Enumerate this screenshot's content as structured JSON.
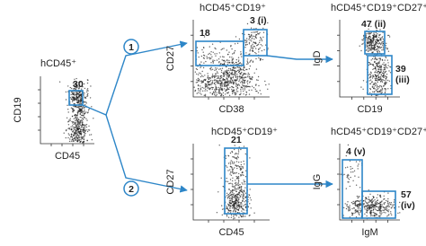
{
  "panels": [
    {
      "title": "hCD45⁺",
      "x_label": "CD45",
      "y_label": "CD19",
      "gates": [
        {
          "lines": [
            "30"
          ]
        }
      ]
    },
    {
      "title": "hCD45⁺CD19⁺",
      "x_label": "CD38",
      "y_label": "CD27",
      "gates": [
        {
          "lines": [
            "18"
          ]
        },
        {
          "lines": [
            "3 (i)"
          ]
        }
      ]
    },
    {
      "title": "hCD45⁺CD19⁺CD27⁺",
      "x_label": "CD19",
      "y_label": "IgD",
      "gates": [
        {
          "lines": [
            "47 (ii)"
          ]
        },
        {
          "lines": [
            "39",
            "(iii)"
          ]
        }
      ]
    },
    {
      "title": "hCD45⁺CD19⁺",
      "x_label": "CD45",
      "y_label": "CD27",
      "gates": [
        {
          "lines": [
            "21"
          ]
        }
      ]
    },
    {
      "title": "hCD45⁺CD19⁺CD27⁺",
      "x_label": "IgM",
      "y_label": "IgG",
      "gates": [
        {
          "lines": [
            "4 (v)"
          ]
        },
        {
          "lines": [
            "57",
            "(iv)"
          ]
        }
      ]
    }
  ],
  "branches": [
    "1",
    "2"
  ]
}
